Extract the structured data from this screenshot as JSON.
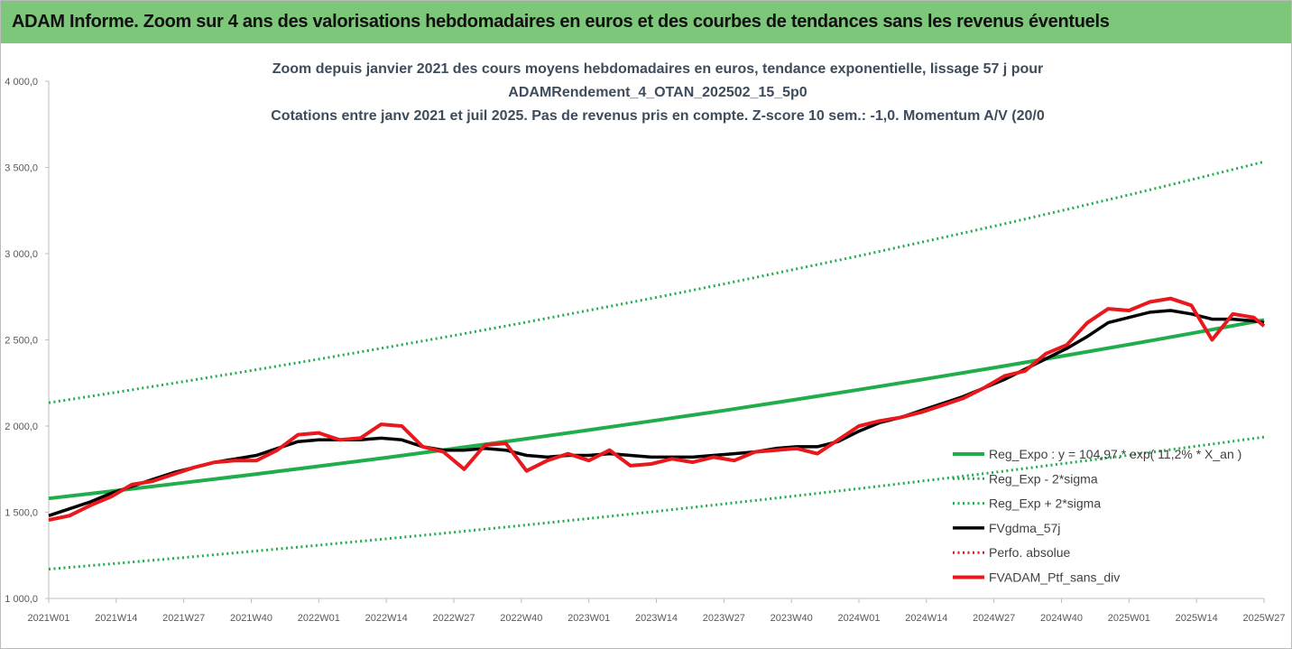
{
  "header": {
    "title": "ADAM Informe. Zoom sur 4 ans des valorisations hebdomadaires en euros et des courbes de tendances sans les revenus éventuels"
  },
  "chart_data": {
    "type": "line",
    "title_lines": [
      "Zoom depuis janvier 2021 des cours moyens hebdomadaires  en euros, tendance exponentielle, lissage 57 j pour",
      "ADAMRendement_4_OTAN_202502_15_5p0",
      "Cotations entre janv 2021 et juil 2025. Pas de revenus pris en compte. Z-score 10 sem.: -1,0. Momentum A/V (20/0"
    ],
    "xlim": [
      0,
      234
    ],
    "xticks": [
      {
        "value": 0,
        "label": "2021W01"
      },
      {
        "value": 13,
        "label": "2021W14"
      },
      {
        "value": 26,
        "label": "2021W27"
      },
      {
        "value": 39,
        "label": "2021W40"
      },
      {
        "value": 52,
        "label": "2022W01"
      },
      {
        "value": 65,
        "label": "2022W14"
      },
      {
        "value": 78,
        "label": "2022W27"
      },
      {
        "value": 91,
        "label": "2022W40"
      },
      {
        "value": 104,
        "label": "2023W01"
      },
      {
        "value": 117,
        "label": "2023W14"
      },
      {
        "value": 130,
        "label": "2023W27"
      },
      {
        "value": 143,
        "label": "2023W40"
      },
      {
        "value": 156,
        "label": "2024W01"
      },
      {
        "value": 169,
        "label": "2024W14"
      },
      {
        "value": 182,
        "label": "2024W27"
      },
      {
        "value": 195,
        "label": "2024W40"
      },
      {
        "value": 208,
        "label": "2025W01"
      },
      {
        "value": 221,
        "label": "2025W14"
      },
      {
        "value": 234,
        "label": "2025W27"
      }
    ],
    "ylim": [
      1000,
      4000
    ],
    "yticks": [
      {
        "value": 1000,
        "label": "1 000,0"
      },
      {
        "value": 1500,
        "label": "1 500,0"
      },
      {
        "value": 2000,
        "label": "2 000,0"
      },
      {
        "value": 2500,
        "label": "2 500,0"
      },
      {
        "value": 3000,
        "label": "3 000,0"
      },
      {
        "value": 3500,
        "label": "3 500,0"
      },
      {
        "value": 4000,
        "label": "4 000,0"
      }
    ],
    "grid": false,
    "legend": "right",
    "series": [
      {
        "name": "Reg_Expo : y = 104,97.* exp( 11,2% *  X_an )",
        "color": "#21ad4b",
        "dash": "solid",
        "width": 4,
        "x": [
          0,
          13,
          26,
          39,
          52,
          65,
          78,
          91,
          104,
          117,
          130,
          143,
          156,
          169,
          182,
          195,
          208,
          221,
          234
        ],
        "values": [
          1580,
          1625,
          1671,
          1718,
          1767,
          1817,
          1869,
          1922,
          1977,
          2033,
          2090,
          2150,
          2211,
          2274,
          2338,
          2405,
          2473,
          2543,
          2615
        ]
      },
      {
        "name": "Reg_Exp - 2*sigma",
        "color": "#21ad4b",
        "dash": "dotted",
        "width": 3,
        "x": [
          0,
          13,
          26,
          39,
          52,
          65,
          78,
          91,
          104,
          117,
          130,
          143,
          156,
          169,
          182,
          195,
          208,
          221,
          234
        ],
        "values": [
          1170,
          1203,
          1237,
          1273,
          1309,
          1346,
          1384,
          1423,
          1464,
          1505,
          1548,
          1592,
          1637,
          1684,
          1731,
          1781,
          1831,
          1883,
          1936
        ]
      },
      {
        "name": "Reg_Exp + 2*sigma",
        "color": "#21ad4b",
        "dash": "dotted",
        "width": 3,
        "x": [
          0,
          13,
          26,
          39,
          52,
          65,
          78,
          91,
          104,
          117,
          130,
          143,
          156,
          169,
          182,
          195,
          208,
          221,
          234
        ],
        "values": [
          2135,
          2196,
          2258,
          2322,
          2388,
          2456,
          2525,
          2597,
          2671,
          2746,
          2824,
          2905,
          2987,
          3072,
          3159,
          3249,
          3341,
          3436,
          3533
        ]
      },
      {
        "name": "FVgdma_57j",
        "color": "#000000",
        "dash": "solid",
        "width": 3.5,
        "x": [
          0,
          4,
          8,
          12,
          16,
          20,
          24,
          28,
          32,
          36,
          40,
          44,
          48,
          52,
          56,
          60,
          64,
          68,
          72,
          76,
          80,
          84,
          88,
          92,
          96,
          100,
          104,
          108,
          112,
          116,
          120,
          124,
          128,
          132,
          136,
          140,
          144,
          148,
          152,
          156,
          160,
          164,
          168,
          172,
          176,
          180,
          184,
          188,
          192,
          196,
          200,
          204,
          208,
          212,
          216,
          220,
          224,
          228,
          232,
          234
        ],
        "values": [
          1480,
          1520,
          1560,
          1610,
          1650,
          1690,
          1730,
          1760,
          1790,
          1810,
          1830,
          1870,
          1910,
          1920,
          1920,
          1920,
          1930,
          1920,
          1880,
          1860,
          1860,
          1870,
          1860,
          1830,
          1820,
          1830,
          1830,
          1840,
          1830,
          1820,
          1820,
          1820,
          1830,
          1840,
          1850,
          1870,
          1880,
          1880,
          1910,
          1970,
          2020,
          2050,
          2090,
          2130,
          2170,
          2220,
          2270,
          2330,
          2390,
          2450,
          2520,
          2600,
          2630,
          2660,
          2670,
          2650,
          2620,
          2620,
          2610,
          2600
        ]
      },
      {
        "name": "Perfo. absolue",
        "color": "#e0191c",
        "dash": "dotted",
        "width": 3,
        "x": [],
        "values": []
      },
      {
        "name": "FVADAM_Ptf_sans_div",
        "color": "#e8181c",
        "dash": "solid",
        "width": 4,
        "x": [
          0,
          4,
          8,
          12,
          16,
          20,
          24,
          28,
          32,
          36,
          40,
          44,
          48,
          52,
          56,
          60,
          64,
          68,
          72,
          76,
          80,
          84,
          88,
          92,
          96,
          100,
          104,
          108,
          112,
          116,
          120,
          124,
          128,
          132,
          136,
          140,
          144,
          148,
          152,
          156,
          160,
          164,
          168,
          172,
          176,
          180,
          184,
          188,
          192,
          196,
          200,
          204,
          208,
          212,
          216,
          220,
          224,
          228,
          232,
          234
        ],
        "values": [
          1455,
          1480,
          1540,
          1590,
          1660,
          1680,
          1720,
          1760,
          1790,
          1800,
          1800,
          1860,
          1950,
          1960,
          1920,
          1930,
          2010,
          2000,
          1880,
          1850,
          1750,
          1890,
          1900,
          1740,
          1800,
          1840,
          1800,
          1860,
          1770,
          1780,
          1810,
          1790,
          1820,
          1800,
          1850,
          1860,
          1870,
          1840,
          1920,
          2000,
          2030,
          2050,
          2080,
          2120,
          2160,
          2220,
          2290,
          2320,
          2420,
          2470,
          2600,
          2680,
          2670,
          2720,
          2740,
          2700,
          2500,
          2650,
          2630,
          2580
        ]
      }
    ]
  }
}
